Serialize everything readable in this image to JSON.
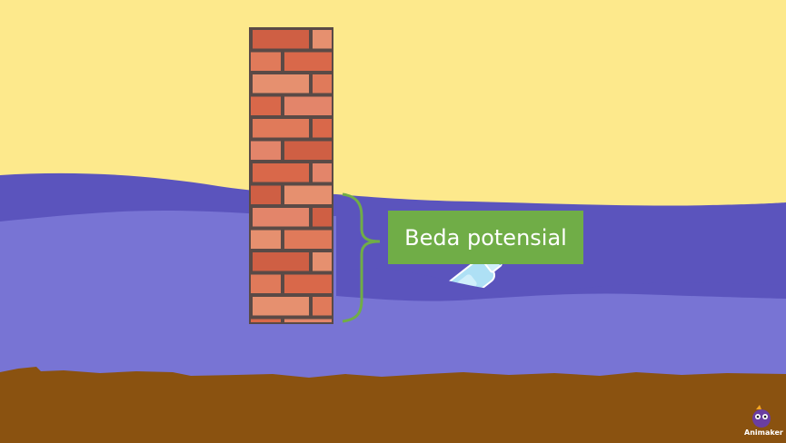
{
  "annotation": {
    "label": "Beda potensial",
    "label_color": "#70ad47",
    "bracket_color": "#70ad47"
  },
  "scene": {
    "sky_color": "#fde98c",
    "water_back_color": "#5b54bd",
    "water_front_color": "#7874d4",
    "ground_color": "#8a5210",
    "brick_color": "#e07a5a",
    "mortar_color": "#5a4a46",
    "bottle_color": "#aee0f5"
  },
  "logo": {
    "text": "Animaker"
  }
}
